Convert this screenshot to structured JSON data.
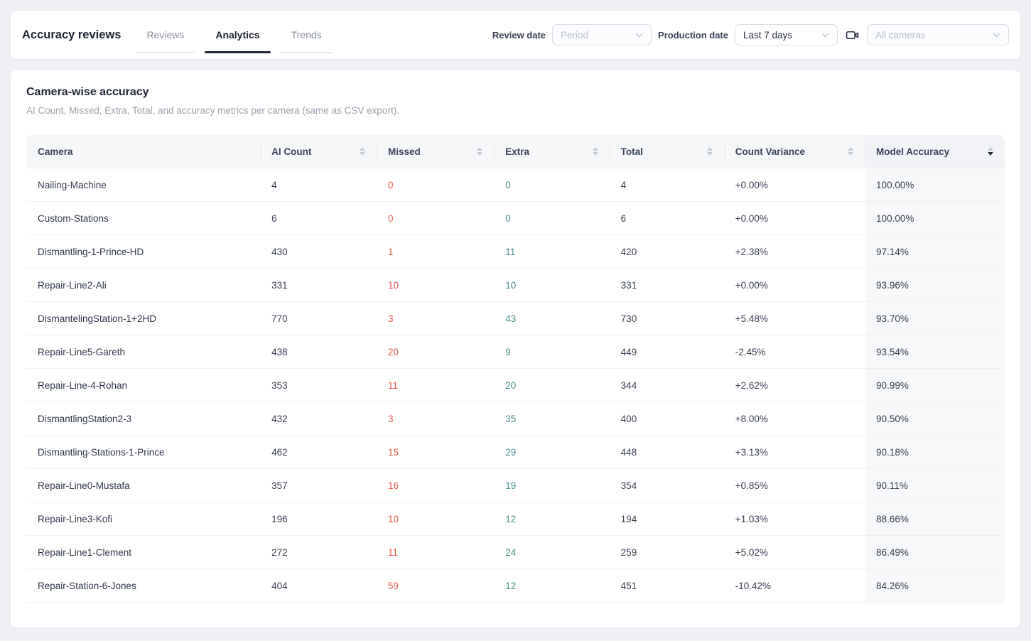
{
  "topbar": {
    "title": "Accuracy reviews",
    "tabs": [
      {
        "label": "Reviews",
        "active": false
      },
      {
        "label": "Analytics",
        "active": true
      },
      {
        "label": "Trends",
        "active": false
      }
    ],
    "filters": {
      "review_date_label": "Review date",
      "review_date_value": "Period",
      "review_date_is_placeholder": true,
      "production_date_label": "Production date",
      "production_date_value": "Last 7 days",
      "camera_icon": "video-camera-icon",
      "cameras_value": "All cameras",
      "cameras_is_placeholder": true
    }
  },
  "card": {
    "title": "Camera-wise accuracy",
    "subtitle": "AI Count, Missed, Extra, Total, and accuracy metrics per camera (same as CSV export)."
  },
  "table": {
    "columns": [
      {
        "key": "camera",
        "label": "Camera",
        "sortable": false
      },
      {
        "key": "ai_count",
        "label": "AI Count",
        "sortable": true
      },
      {
        "key": "missed",
        "label": "Missed",
        "sortable": true
      },
      {
        "key": "extra",
        "label": "Extra",
        "sortable": true
      },
      {
        "key": "total",
        "label": "Total",
        "sortable": true
      },
      {
        "key": "variance",
        "label": "Count Variance",
        "sortable": true
      },
      {
        "key": "accuracy",
        "label": "Model Accuracy",
        "sortable": true,
        "sort": "desc"
      }
    ],
    "rows": [
      {
        "camera": "Nailing-Machine",
        "ai_count": "4",
        "missed": "0",
        "extra": "0",
        "total": "4",
        "variance": "+0.00%",
        "accuracy": "100.00%"
      },
      {
        "camera": "Custom-Stations",
        "ai_count": "6",
        "missed": "0",
        "extra": "0",
        "total": "6",
        "variance": "+0.00%",
        "accuracy": "100.00%"
      },
      {
        "camera": "Dismantling-1-Prince-HD",
        "ai_count": "430",
        "missed": "1",
        "extra": "11",
        "total": "420",
        "variance": "+2.38%",
        "accuracy": "97.14%"
      },
      {
        "camera": "Repair-Line2-Ali",
        "ai_count": "331",
        "missed": "10",
        "extra": "10",
        "total": "331",
        "variance": "+0.00%",
        "accuracy": "93.96%"
      },
      {
        "camera": "DismantelingStation-1+2HD",
        "ai_count": "770",
        "missed": "3",
        "extra": "43",
        "total": "730",
        "variance": "+5.48%",
        "accuracy": "93.70%"
      },
      {
        "camera": "Repair-Line5-Gareth",
        "ai_count": "438",
        "missed": "20",
        "extra": "9",
        "total": "449",
        "variance": "-2.45%",
        "accuracy": "93.54%"
      },
      {
        "camera": "Repair-Line-4-Rohan",
        "ai_count": "353",
        "missed": "11",
        "extra": "20",
        "total": "344",
        "variance": "+2.62%",
        "accuracy": "90.99%"
      },
      {
        "camera": "DismantlingStation2-3",
        "ai_count": "432",
        "missed": "3",
        "extra": "35",
        "total": "400",
        "variance": "+8.00%",
        "accuracy": "90.50%"
      },
      {
        "camera": "Dismantling-Stations-1-Prince",
        "ai_count": "462",
        "missed": "15",
        "extra": "29",
        "total": "448",
        "variance": "+3.13%",
        "accuracy": "90.18%"
      },
      {
        "camera": "Repair-Line0-Mustafa",
        "ai_count": "357",
        "missed": "16",
        "extra": "19",
        "total": "354",
        "variance": "+0.85%",
        "accuracy": "90.11%"
      },
      {
        "camera": "Repair-Line3-Kofi",
        "ai_count": "196",
        "missed": "10",
        "extra": "12",
        "total": "194",
        "variance": "+1.03%",
        "accuracy": "88.66%"
      },
      {
        "camera": "Repair-Line1-Clement",
        "ai_count": "272",
        "missed": "11",
        "extra": "24",
        "total": "259",
        "variance": "+5.02%",
        "accuracy": "86.49%"
      },
      {
        "camera": "Repair-Station-6-Jones",
        "ai_count": "404",
        "missed": "59",
        "extra": "12",
        "total": "451",
        "variance": "-10.42%",
        "accuracy": "84.26%"
      }
    ]
  },
  "colors": {
    "missed_red": "#e2584c",
    "extra_teal": "#4c8f8c",
    "accent_dark": "#20263a",
    "page_bg": "#eef0f4"
  }
}
